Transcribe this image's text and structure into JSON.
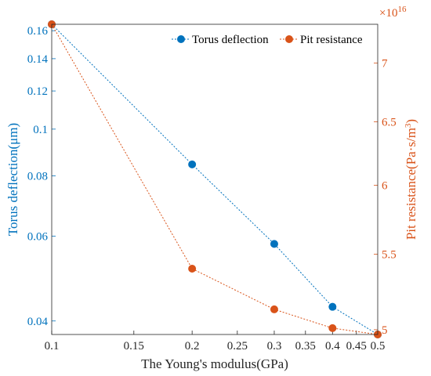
{
  "chart_data": {
    "type": "line",
    "xlabel": "The Young's modulus(GPa)",
    "x_scale": "log",
    "xlim": [
      0.1,
      0.5
    ],
    "x_ticks": [
      0.1,
      0.15,
      0.2,
      0.25,
      0.3,
      0.35,
      0.4,
      0.45,
      0.5
    ],
    "x_tick_labels": [
      "0.1",
      "0.15",
      "0.2",
      "0.25",
      "0.3",
      "0.35",
      "0.4",
      "0.45",
      "0.5"
    ],
    "x": [
      0.1,
      0.2,
      0.3,
      0.4,
      0.5
    ],
    "y_left": {
      "label": "Torus deflection(μm)",
      "scale": "log",
      "lim": [
        0.0375,
        0.165
      ],
      "ticks": [
        0.04,
        0.06,
        0.08,
        0.1,
        0.12,
        0.14,
        0.16
      ],
      "tick_labels": [
        "0.04",
        "0.06",
        "0.08",
        "0.1",
        "0.12",
        "0.14",
        "0.16"
      ],
      "color": "#0072BD"
    },
    "y_right": {
      "label_prefix": "Pit resistance(Pa·s/m",
      "label_superscript": "3",
      "label_suffix": ")",
      "scale": "log",
      "lim": [
        4.97e+16,
        7.35e+16
      ],
      "exponent_label": "×10",
      "exponent_value": "16",
      "ticks": [
        5e+16,
        5.5e+16,
        6e+16,
        6.5e+16,
        7e+16
      ],
      "tick_labels": [
        "5",
        "5.5",
        "6",
        "6.5",
        "7"
      ],
      "color": "#D95319"
    },
    "series": [
      {
        "name": "Torus deflection",
        "axis": "left",
        "color": "#0072BD",
        "values": [
          0.165,
          0.0845,
          0.0578,
          0.0428,
          0.0375
        ]
      },
      {
        "name": "Pit resistance",
        "axis": "right",
        "color": "#D95319",
        "values": [
          7.35e+16,
          5.4e+16,
          5.13e+16,
          5.01e+16,
          4.97e+16
        ]
      }
    ],
    "legend": "top-right",
    "grid": false
  }
}
